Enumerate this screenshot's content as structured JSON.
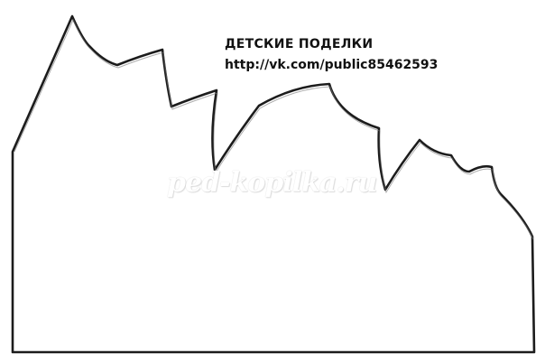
{
  "header": {
    "title": "ДЕТСКИЕ ПОДЕЛКИ",
    "url": "http://vk.com/public85462593"
  },
  "watermark": "ped-kopilka.ru",
  "colors": {
    "outline": "#1a1a1a",
    "background": "#ffffff"
  }
}
